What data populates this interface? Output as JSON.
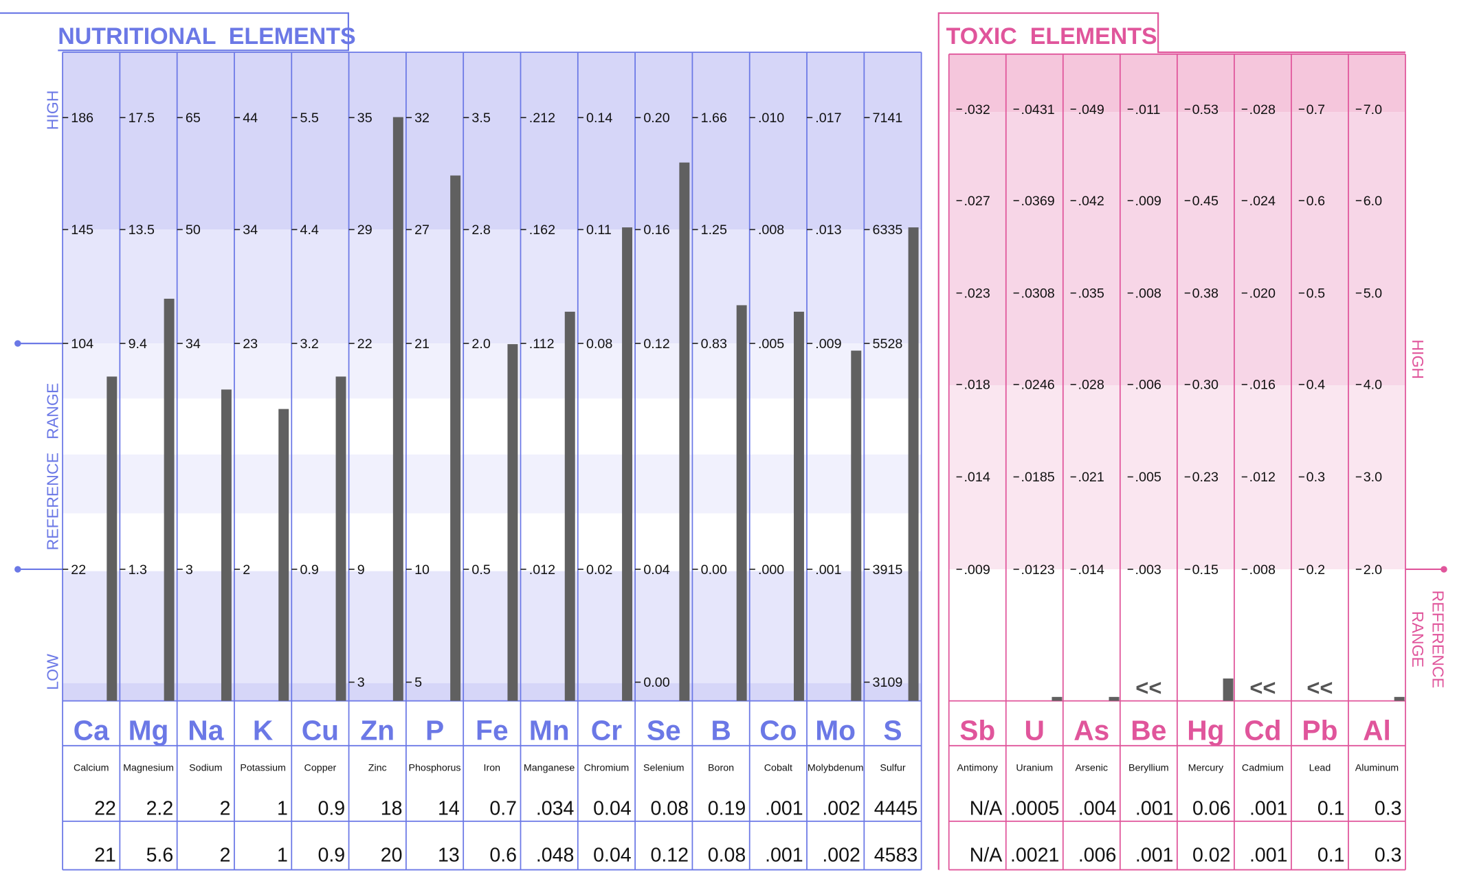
{
  "colors": {
    "nutritional_accent": "#6b78e6",
    "nutritional_band_high": "#d6d6f8",
    "nutritional_band_mid": "#e6e6fb",
    "nutritional_band_light": "#f1f1fd",
    "toxic_accent": "#e0559b",
    "toxic_band_high": "#f5c6dc",
    "toxic_band_mid": "#f7d6e7",
    "toxic_band_light": "#fae6f0",
    "bar": "#606060",
    "text": "#111111"
  },
  "nutritional": {
    "title": "NUTRITIONAL  ELEMENTS",
    "side_labels": {
      "high": "HIGH",
      "reference": "REFERENCE   RANGE",
      "low": "LOW"
    }
  },
  "toxic": {
    "title": "TOXIC  ELEMENTS",
    "side_labels": {
      "high": "HIGH",
      "reference": "REFERENCE",
      "range": "RANGE"
    }
  },
  "chart_data": [
    {
      "type": "bar",
      "title": "NUTRITIONAL  ELEMENTS",
      "grid": true,
      "categories": [
        "Ca",
        "Mg",
        "Na",
        "K",
        "Cu",
        "Zn",
        "P",
        "Fe",
        "Mn",
        "Cr",
        "Se",
        "B",
        "Co",
        "Mo",
        "S"
      ],
      "names": [
        "Calcium",
        "Magnesium",
        "Sodium",
        "Potassium",
        "Copper",
        "Zinc",
        "Phosphorus",
        "Iron",
        "Manganese",
        "Chromium",
        "Selenium",
        "Boron",
        "Cobalt",
        "Molybdenum",
        "Sulfur"
      ],
      "tick_labels": [
        [
          "186",
          "145",
          "104",
          "22"
        ],
        [
          "17.5",
          "13.5",
          "9.4",
          "1.3"
        ],
        [
          "65",
          "50",
          "34",
          "3"
        ],
        [
          "44",
          "34",
          "23",
          "2"
        ],
        [
          "5.5",
          "4.4",
          "3.2",
          "0.9"
        ],
        [
          "35",
          "29",
          "22",
          "9",
          "3"
        ],
        [
          "32",
          "27",
          "21",
          "10",
          "5"
        ],
        [
          "3.5",
          "2.8",
          "2.0",
          "0.5"
        ],
        [
          ".212",
          ".162",
          ".112",
          ".012"
        ],
        [
          "0.14",
          "0.11",
          "0.08",
          "0.02"
        ],
        [
          "0.20",
          "0.16",
          "0.12",
          "0.04",
          "0.00"
        ],
        [
          "1.66",
          "1.25",
          "0.83",
          "0.00"
        ],
        [
          ".010",
          ".008",
          ".005",
          ".000"
        ],
        [
          ".017",
          ".013",
          ".009",
          ".001"
        ],
        [
          "7141",
          "6335",
          "5528",
          "3915",
          "3109"
        ]
      ],
      "series": [
        {
          "values": [
            "22",
            "2.2",
            "2",
            "1",
            "0.9",
            "18",
            "14",
            "0.7",
            ".034",
            "0.04",
            "0.08",
            "0.19",
            ".001",
            ".002",
            "4445"
          ]
        },
        {
          "values": [
            "21",
            "5.6",
            "2",
            "1",
            "0.9",
            "20",
            "13",
            "0.6",
            ".048",
            "0.04",
            "0.12",
            "0.08",
            ".001",
            ".002",
            "4583"
          ]
        }
      ],
      "bar_levels": [
        0.5,
        0.62,
        0.48,
        0.45,
        0.5,
        0.9,
        0.81,
        0.55,
        0.6,
        0.73,
        0.83,
        0.61,
        0.6,
        0.54,
        0.73
      ]
    },
    {
      "type": "bar",
      "title": "TOXIC  ELEMENTS",
      "grid": true,
      "categories": [
        "Sb",
        "U",
        "As",
        "Be",
        "Hg",
        "Cd",
        "Pb",
        "Al"
      ],
      "names": [
        "Antimony",
        "Uranium",
        "Arsenic",
        "Beryllium",
        "Mercury",
        "Cadmium",
        "Lead",
        "Aluminum"
      ],
      "tick_labels": [
        [
          ".032",
          ".027",
          ".023",
          ".018",
          ".014",
          ".009"
        ],
        [
          ".0431",
          ".0369",
          ".0308",
          ".0246",
          ".0185",
          ".0123"
        ],
        [
          ".049",
          ".042",
          ".035",
          ".028",
          ".021",
          ".014"
        ],
        [
          ".011",
          ".009",
          ".008",
          ".006",
          ".005",
          ".003"
        ],
        [
          "0.53",
          "0.45",
          "0.38",
          "0.30",
          "0.23",
          "0.15"
        ],
        [
          ".028",
          ".024",
          ".020",
          ".016",
          ".012",
          ".008"
        ],
        [
          "0.7",
          "0.6",
          "0.5",
          "0.4",
          "0.3",
          "0.2"
        ],
        [
          "7.0",
          "6.0",
          "5.0",
          "4.0",
          "3.0",
          "2.0"
        ]
      ],
      "series": [
        {
          "values": [
            "N/A",
            ".0005",
            ".004",
            ".001",
            "0.06",
            ".001",
            "0.1",
            "0.3"
          ]
        },
        {
          "values": [
            "N/A",
            ".0021",
            ".006",
            ".001",
            "0.02",
            ".001",
            "0.1",
            "0.3"
          ]
        }
      ],
      "bar_levels": [
        0,
        0.03,
        0.03,
        0,
        0.17,
        0,
        0,
        0.03
      ],
      "below_marks": [
        "",
        "",
        "",
        "<<",
        "",
        "<<",
        "<<",
        ""
      ]
    }
  ]
}
